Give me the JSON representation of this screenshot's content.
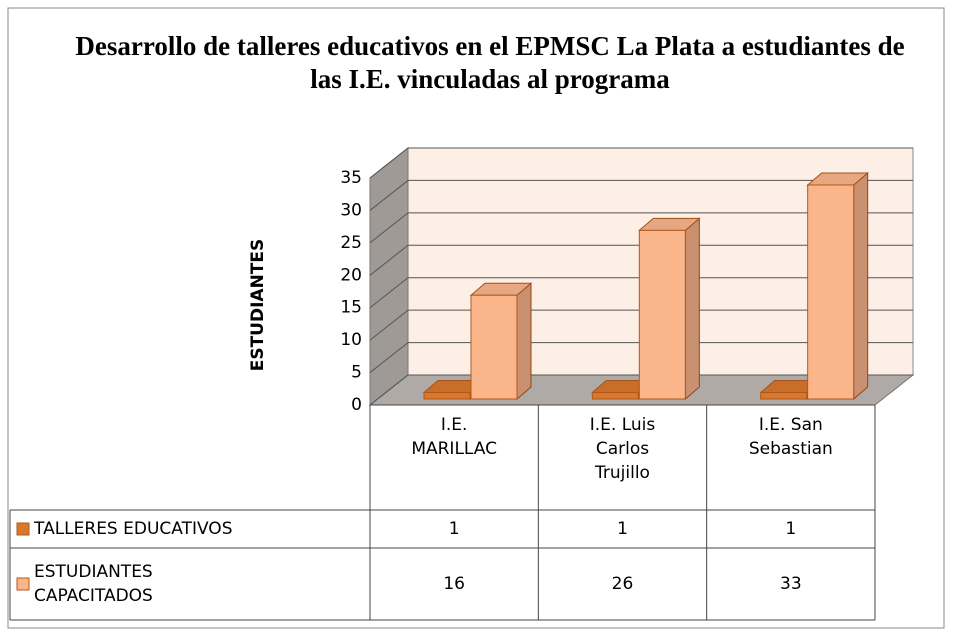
{
  "chart_data": {
    "type": "bar3d",
    "title": "Desarrollo de talleres educativos en el EPMSC La Plata a estudiantes de las I.E. vinculadas al programa",
    "y_label": "ESTUDIANTES",
    "categories": [
      "I.E. MARILLAC",
      "I.E. Luis Carlos Trujillo",
      "I.E. San Sebastian"
    ],
    "series": [
      {
        "name": "TALLERES EDUCATIVOS",
        "color": "#d9782d",
        "values": [
          1,
          1,
          1
        ]
      },
      {
        "name": "ESTUDIANTES CAPACITADOS",
        "color": "#fbb58b",
        "values": [
          16,
          26,
          33
        ]
      }
    ],
    "ylim": [
      0,
      35
    ],
    "yticks": [
      0,
      5,
      10,
      15,
      20,
      25,
      30,
      35
    ],
    "grid": true
  }
}
